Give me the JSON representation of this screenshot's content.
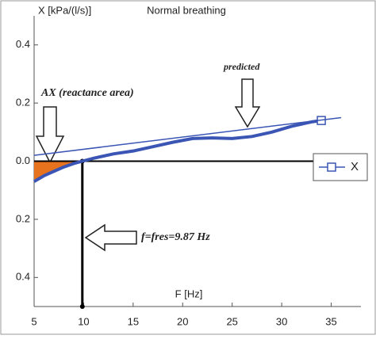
{
  "chart_data": {
    "type": "line",
    "title": "Normal breathing",
    "y_label": "X [kPa/(l/s)]",
    "x_label": "F [Hz]",
    "annotations": {
      "area": "AX (reactance area)",
      "resonance": "f=fres=9.87 Hz"
    },
    "fres": 9.87,
    "xlim": [
      5,
      38
    ],
    "ylim": [
      -0.5,
      0.5
    ],
    "xticks": [
      5,
      10,
      15,
      20,
      25,
      30,
      35
    ],
    "yticks": [
      0.4,
      0.2,
      {
        "value": 0,
        "label": "0.0"
      },
      {
        "value": -0.2,
        "label": "0.2"
      },
      {
        "value": -0.4,
        "label": "0.4"
      }
    ],
    "area_color": "#e8731e",
    "series": [
      {
        "name": "X",
        "color": "#3a55b4",
        "legend": true,
        "x": [
          5,
          6,
          7,
          8,
          9,
          9.87,
          11,
          13,
          15,
          17,
          19,
          21,
          23,
          25,
          27,
          29,
          31,
          33,
          34
        ],
        "values": [
          -0.07,
          -0.05,
          -0.035,
          -0.02,
          -0.008,
          0,
          0.01,
          0.025,
          0.035,
          0.05,
          0.065,
          0.078,
          0.08,
          0.078,
          0.085,
          0.1,
          0.12,
          0.135,
          0.14
        ]
      },
      {
        "name": "predicted",
        "color": "#3a55b4",
        "legend": false,
        "x": [
          5,
          36
        ],
        "values": [
          0.02,
          0.15
        ]
      }
    ]
  }
}
